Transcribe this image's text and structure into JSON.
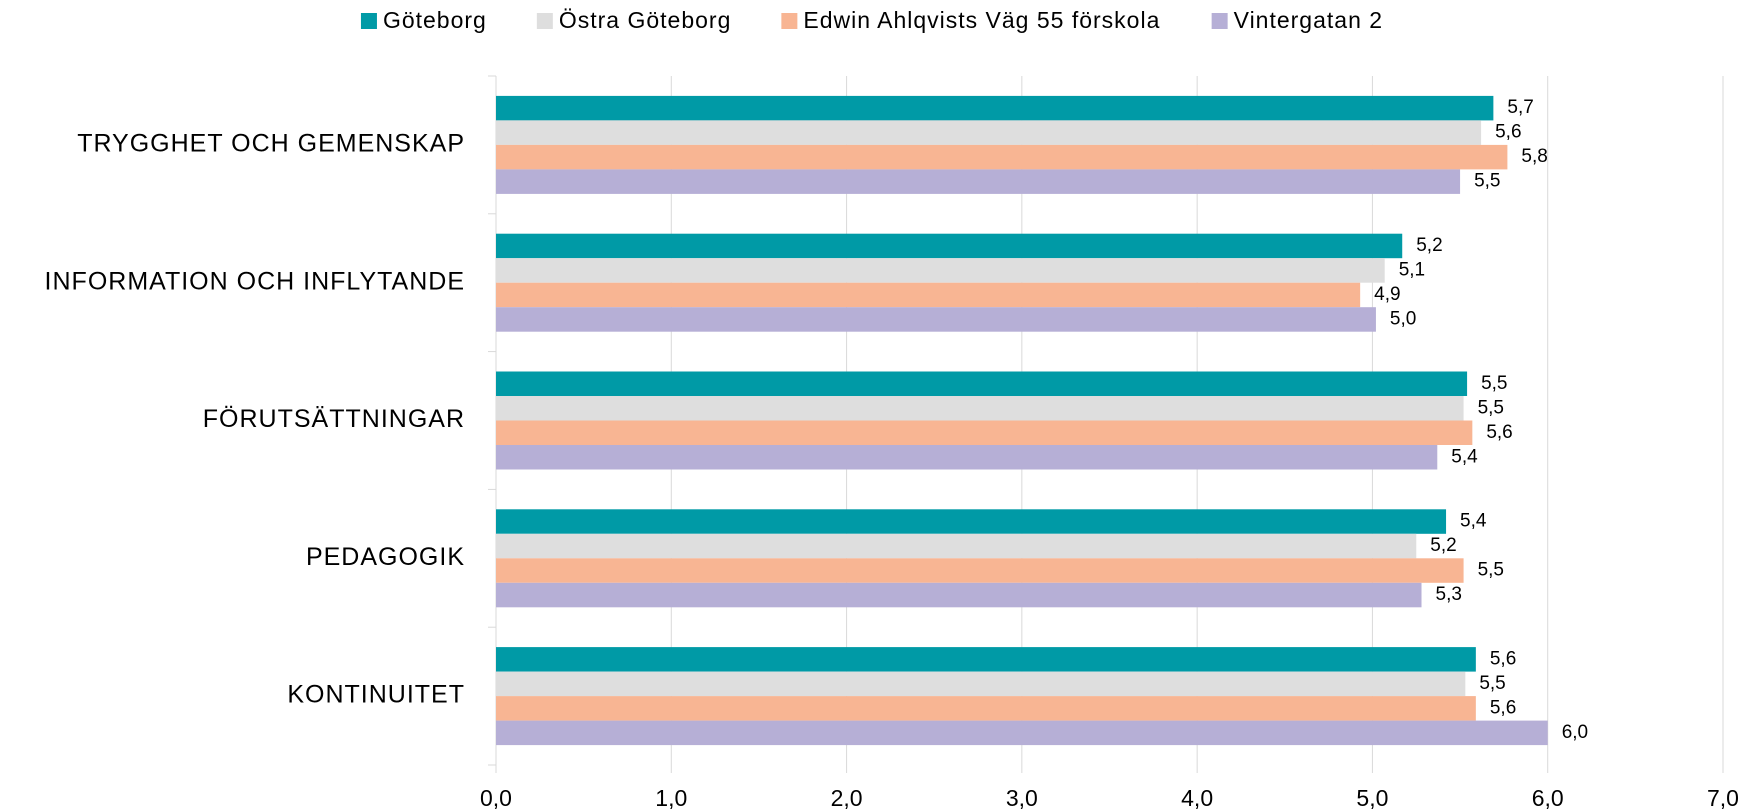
{
  "chart_data": {
    "type": "barh",
    "categories": [
      "TRYGGHET OCH GEMENSKAP",
      "INFORMATION OCH INFLYTANDE",
      "FÖRUTSÄTTNINGAR",
      "PEDAGOGIK",
      "KONTINUITET"
    ],
    "series": [
      {
        "name": "Göteborg",
        "color": "#009aa6",
        "values": [
          5.69,
          5.17,
          5.54,
          5.42,
          5.59
        ],
        "value_labels": [
          "5,7",
          "5,2",
          "5,5",
          "5,4",
          "5,6"
        ]
      },
      {
        "name": "Östra Göteborg",
        "color": "#dedede",
        "values": [
          5.62,
          5.07,
          5.52,
          5.25,
          5.53
        ],
        "value_labels": [
          "5,6",
          "5,1",
          "5,5",
          "5,2",
          "5,5"
        ]
      },
      {
        "name": "Edwin Ahlqvists Väg 55 förskola",
        "color": "#f8b593",
        "values": [
          5.77,
          4.93,
          5.57,
          5.52,
          5.59
        ],
        "value_labels": [
          "5,8",
          "4,9",
          "5,6",
          "5,5",
          "5,6"
        ]
      },
      {
        "name": "Vintergatan 2",
        "color": "#b6afd6",
        "values": [
          5.5,
          5.02,
          5.37,
          5.28,
          6.0
        ],
        "value_labels": [
          "5,5",
          "5,0",
          "5,4",
          "5,3",
          "6,0"
        ]
      }
    ],
    "xlim": [
      0,
      7
    ],
    "xticks": [
      {
        "value": 0,
        "label": "0,0"
      },
      {
        "value": 1,
        "label": "1,0"
      },
      {
        "value": 2,
        "label": "2,0"
      },
      {
        "value": 3,
        "label": "3,0"
      },
      {
        "value": 4,
        "label": "4,0"
      },
      {
        "value": 5,
        "label": "5,0"
      },
      {
        "value": 6,
        "label": "6,0"
      },
      {
        "value": 7,
        "label": "7,0"
      }
    ],
    "grid": true,
    "legend": "top"
  }
}
